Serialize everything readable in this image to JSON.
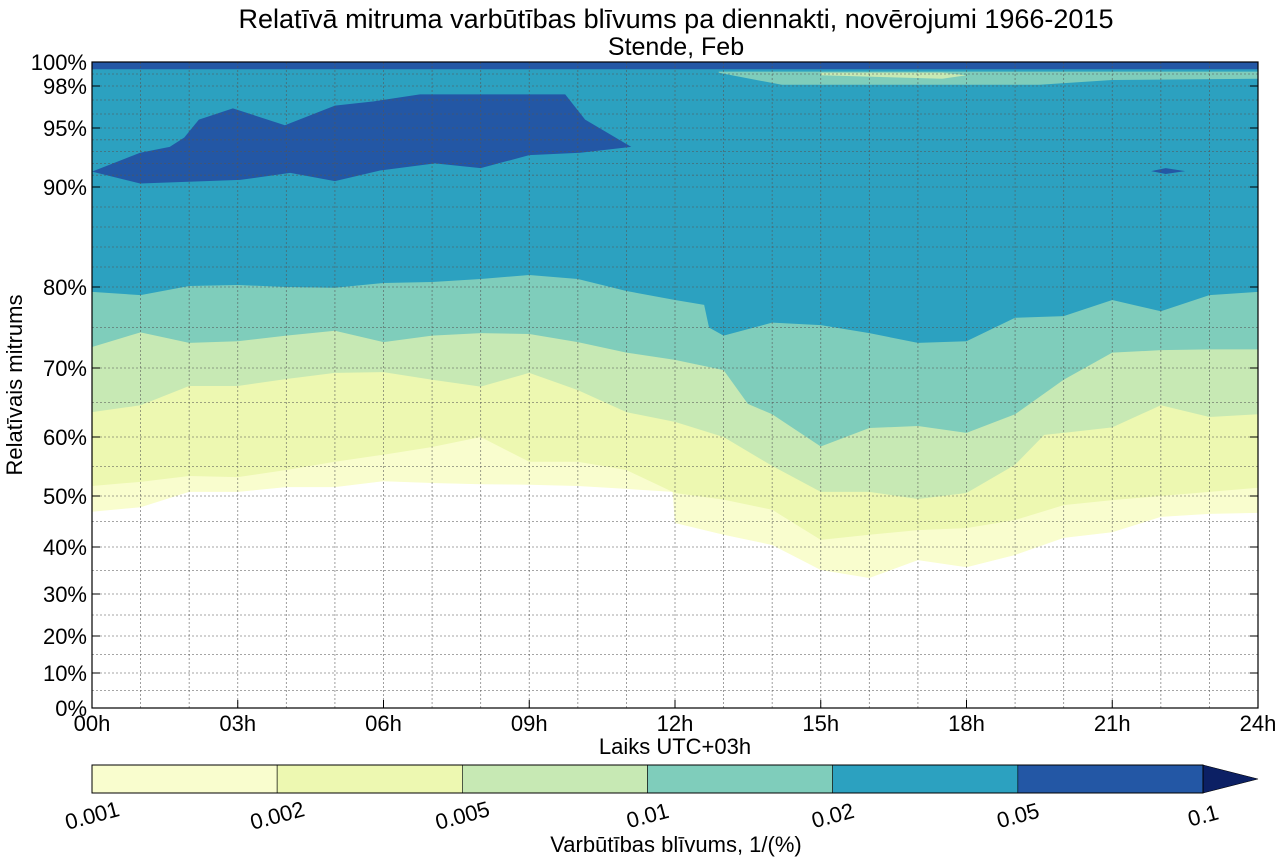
{
  "chart_data": {
    "type": "contour",
    "title": "Relatīvā mitruma varbūtības blīvums pa diennakti, novērojumi 1966-2015",
    "subtitle": "Stende, Feb",
    "xlabel": "Laiks UTC+03h",
    "ylabel": "Relatīvais mitrums",
    "xlim": [
      0,
      24
    ],
    "ylim": [
      0,
      100
    ],
    "grid": true,
    "x_ticks": [
      {
        "value": 0,
        "label": "00h"
      },
      {
        "value": 3,
        "label": "03h"
      },
      {
        "value": 6,
        "label": "06h"
      },
      {
        "value": 9,
        "label": "09h"
      },
      {
        "value": 12,
        "label": "12h"
      },
      {
        "value": 15,
        "label": "15h"
      },
      {
        "value": 18,
        "label": "18h"
      },
      {
        "value": 21,
        "label": "21h"
      },
      {
        "value": 24,
        "label": "24h"
      }
    ],
    "y_ticks": [
      {
        "value": 0,
        "label": "0%"
      },
      {
        "value": 10,
        "label": "10%"
      },
      {
        "value": 20,
        "label": "20%"
      },
      {
        "value": 30,
        "label": "30%"
      },
      {
        "value": 40,
        "label": "40%"
      },
      {
        "value": 50,
        "label": "50%"
      },
      {
        "value": 60,
        "label": "60%"
      },
      {
        "value": 70,
        "label": "70%"
      },
      {
        "value": 80,
        "label": "80%"
      },
      {
        "value": 90,
        "label": "90%"
      },
      {
        "value": 95,
        "label": "95%"
      },
      {
        "value": 98,
        "label": "98%"
      },
      {
        "value": 100,
        "label": "100%"
      }
    ],
    "colorbar": {
      "label": "Varbūtības blīvums, 1/(%)",
      "levels": [
        "0.001",
        "0.002",
        "0.005",
        "0.01",
        "0.02",
        "0.05",
        "0.1"
      ],
      "colors": [
        "#f9fdce",
        "#edf8b1",
        "#c7e9b4",
        "#7fcdbb",
        "#2ca1c0",
        "#2357a5"
      ],
      "extend_color": "#0c2064"
    },
    "level_boundaries": [
      {
        "level": "0.001",
        "points": [
          [
            0,
            46.9
          ],
          [
            1,
            47.8
          ],
          [
            2,
            50.7
          ],
          [
            3,
            50.7
          ],
          [
            4,
            51.5
          ],
          [
            5,
            51.5
          ],
          [
            6,
            52.5
          ],
          [
            7,
            52.2
          ],
          [
            8,
            52
          ],
          [
            9,
            51.9
          ],
          [
            10,
            51.7
          ],
          [
            11,
            51.2
          ],
          [
            11.95,
            50.7
          ],
          [
            12,
            44.7
          ],
          [
            13,
            42.4
          ],
          [
            14,
            40.4
          ],
          [
            15,
            35.1
          ],
          [
            16,
            33.4
          ],
          [
            17,
            37.2
          ],
          [
            18,
            35.7
          ],
          [
            19,
            38.3
          ],
          [
            20,
            41.8
          ],
          [
            21,
            42.9
          ],
          [
            22,
            45.9
          ],
          [
            23,
            46.5
          ],
          [
            24,
            46.7
          ]
        ]
      },
      {
        "level": "0.002",
        "points": [
          [
            0,
            51.7
          ],
          [
            1,
            52.4
          ],
          [
            2,
            53.4
          ],
          [
            3,
            53.2
          ],
          [
            4,
            54.4
          ],
          [
            5,
            55.8
          ],
          [
            6,
            57
          ],
          [
            7,
            58.3
          ],
          [
            8,
            60
          ],
          [
            9,
            55.8
          ],
          [
            10,
            55.8
          ],
          [
            11,
            54.4
          ],
          [
            12,
            50.5
          ],
          [
            13,
            49.3
          ],
          [
            14,
            47.3
          ],
          [
            15,
            41.4
          ],
          [
            16,
            42.4
          ],
          [
            17,
            43.3
          ],
          [
            18,
            43.7
          ],
          [
            19,
            45.3
          ],
          [
            20,
            48.2
          ],
          [
            21,
            49.2
          ],
          [
            22,
            50
          ],
          [
            23,
            50.7
          ],
          [
            24,
            51.4
          ]
        ]
      },
      {
        "level": "0.005",
        "points": [
          [
            0,
            63.6
          ],
          [
            1,
            64.6
          ],
          [
            2,
            67.4
          ],
          [
            3,
            67.4
          ],
          [
            4,
            68.4
          ],
          [
            5,
            69.3
          ],
          [
            6,
            69.4
          ],
          [
            7,
            68.3
          ],
          [
            8,
            67.3
          ],
          [
            9,
            69.3
          ],
          [
            10,
            66.8
          ],
          [
            11,
            63.6
          ],
          [
            12,
            62.2
          ],
          [
            13,
            60
          ],
          [
            14,
            55.1
          ],
          [
            15,
            50.7
          ],
          [
            16,
            50.7
          ],
          [
            17,
            49.4
          ],
          [
            18,
            50.5
          ],
          [
            19,
            55.3
          ],
          [
            19.6,
            60.3
          ],
          [
            20,
            60.6
          ],
          [
            21,
            61.4
          ],
          [
            22,
            64.6
          ],
          [
            23,
            62.9
          ],
          [
            24,
            63.3
          ]
        ]
      },
      {
        "level": "0.01",
        "points": [
          [
            0,
            72.6
          ],
          [
            1,
            74.4
          ],
          [
            2,
            73.1
          ],
          [
            3,
            73.3
          ],
          [
            4,
            74
          ],
          [
            5,
            74.6
          ],
          [
            6,
            73.2
          ],
          [
            7,
            74
          ],
          [
            8,
            74.3
          ],
          [
            9,
            74.2
          ],
          [
            10,
            73.2
          ],
          [
            11,
            71.9
          ],
          [
            12,
            71
          ],
          [
            13,
            69.7
          ],
          [
            13.5,
            64.8
          ],
          [
            14,
            63.3
          ],
          [
            15,
            58.4
          ],
          [
            16,
            61.3
          ],
          [
            17,
            61.6
          ],
          [
            18,
            60.6
          ],
          [
            19,
            63.3
          ],
          [
            20,
            68.3
          ],
          [
            21,
            71.9
          ],
          [
            22,
            72.2
          ],
          [
            23,
            72.3
          ],
          [
            24,
            72.3
          ]
        ]
      },
      {
        "level": "0.02",
        "points": [
          [
            0,
            79.4
          ],
          [
            1,
            79
          ],
          [
            2,
            80.1
          ],
          [
            3,
            80.2
          ],
          [
            4,
            80
          ],
          [
            5,
            79.9
          ],
          [
            6,
            80.4
          ],
          [
            7,
            80.5
          ],
          [
            8,
            80.8
          ],
          [
            9,
            81.2
          ],
          [
            10,
            80.8
          ],
          [
            11,
            79.5
          ],
          [
            12,
            78.4
          ],
          [
            12.6,
            77.8
          ],
          [
            12.7,
            75
          ],
          [
            13,
            74
          ],
          [
            14,
            75.6
          ],
          [
            15,
            75.3
          ],
          [
            16,
            74.3
          ],
          [
            17,
            73.1
          ],
          [
            18,
            73.3
          ],
          [
            19,
            76.2
          ],
          [
            20,
            76.4
          ],
          [
            21,
            78.4
          ],
          [
            22,
            77
          ],
          [
            23,
            79
          ],
          [
            24,
            79.4
          ]
        ]
      }
    ],
    "high_density_regions": [
      {
        "level": "0.05",
        "points": [
          [
            0,
            91.3
          ],
          [
            0.99,
            92.9
          ],
          [
            1.6,
            93.4
          ],
          [
            1.9,
            94.2
          ],
          [
            2.2,
            95.6
          ],
          [
            2.9,
            96.4
          ],
          [
            3.97,
            95.2
          ],
          [
            5,
            96.6
          ],
          [
            5.8,
            96.9
          ],
          [
            6.75,
            97.4
          ],
          [
            8.6,
            97.4
          ],
          [
            9.74,
            97.4
          ],
          [
            10.15,
            95.6
          ],
          [
            11.1,
            93.4
          ],
          [
            10.05,
            92.9
          ],
          [
            9,
            92.7
          ],
          [
            8,
            91.6
          ],
          [
            7.06,
            92
          ],
          [
            5.93,
            91.4
          ],
          [
            5,
            90.5
          ],
          [
            4.08,
            91.2
          ],
          [
            3.05,
            90.6
          ],
          [
            0.99,
            90.3
          ]
        ]
      },
      {
        "level": "0.05",
        "points": [
          [
            21.8,
            91.35
          ],
          [
            22.1,
            91.6
          ],
          [
            22.5,
            91.35
          ],
          [
            22.1,
            91.1
          ]
        ]
      },
      {
        "level": "0.05",
        "points": [
          [
            0,
            99.4
          ],
          [
            24,
            99.4
          ],
          [
            24,
            100
          ],
          [
            0,
            100
          ]
        ]
      }
    ],
    "low_density_regions": [
      {
        "level": "0.01",
        "points": [
          [
            12.9,
            99.1
          ],
          [
            14.2,
            98.1
          ],
          [
            19.5,
            98.1
          ],
          [
            21,
            98.5
          ],
          [
            24,
            98.6
          ],
          [
            24,
            99.2
          ],
          [
            12.9,
            99.2
          ]
        ]
      },
      {
        "level": "0.005",
        "points": [
          [
            15,
            98.9
          ],
          [
            17.5,
            98.6
          ],
          [
            18,
            98.9
          ],
          [
            17.5,
            99.1
          ],
          [
            15,
            99.1
          ]
        ]
      }
    ]
  }
}
